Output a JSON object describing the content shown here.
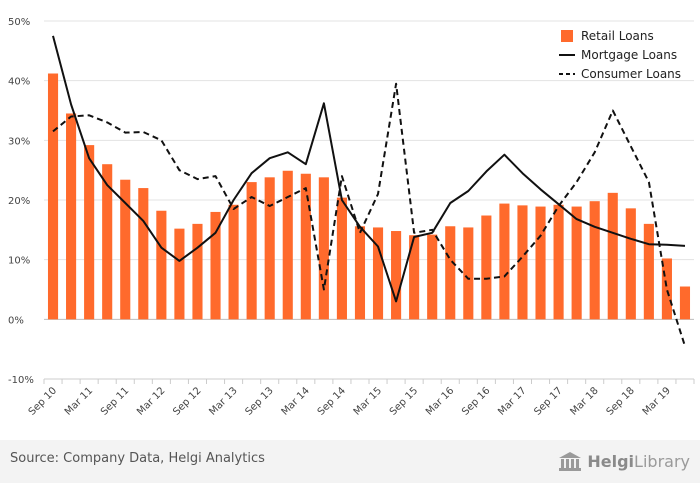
{
  "chart_data": {
    "type": "bar+line",
    "title": "",
    "xlabel": "",
    "ylabel": "",
    "ylim": [
      -10,
      50
    ],
    "yticks": [
      -10,
      0,
      10,
      20,
      30,
      40,
      50
    ],
    "ytick_labels": [
      "-10%",
      "0%",
      "10%",
      "20%",
      "30%",
      "40%",
      "50%"
    ],
    "grid": true,
    "legend_position": "top-right",
    "x_tick_labels": [
      "Sep 10",
      "Mar 11",
      "Sep 11",
      "Mar 12",
      "Sep 12",
      "Mar 13",
      "Sep 13",
      "Mar 14",
      "Sep 14",
      "Mar 15",
      "Sep 15",
      "Mar 16",
      "Sep 16",
      "Mar 17",
      "Sep 17",
      "Mar 18",
      "Sep 18",
      "Mar 19"
    ],
    "categories": [
      "Sep 10",
      "Dec 10",
      "Mar 11",
      "Jun 11",
      "Sep 11",
      "Dec 11",
      "Mar 12",
      "Jun 12",
      "Sep 12",
      "Dec 12",
      "Mar 13",
      "Jun 13",
      "Sep 13",
      "Dec 13",
      "Mar 14",
      "Jun 14",
      "Sep 14",
      "Dec 14",
      "Mar 15",
      "Jun 15",
      "Sep 15",
      "Dec 15",
      "Mar 16",
      "Jun 16",
      "Sep 16",
      "Dec 16",
      "Mar 17",
      "Jun 17",
      "Sep 17",
      "Dec 17",
      "Mar 18",
      "Jun 18",
      "Sep 18",
      "Dec 18",
      "Mar 19",
      "Jun 19"
    ],
    "series": [
      {
        "name": "Retail Loans",
        "kind": "bar",
        "color": "#ff6a2c",
        "values": [
          41.2,
          34.5,
          29.2,
          26.0,
          23.4,
          22.0,
          18.2,
          15.2,
          16.0,
          18.0,
          19.2,
          23.0,
          23.8,
          24.9,
          24.4,
          23.8,
          20.4,
          15.6,
          15.4,
          14.8,
          14.1,
          14.2,
          15.6,
          15.4,
          17.4,
          19.4,
          19.1,
          18.9,
          19.2,
          18.9,
          19.8,
          21.2,
          18.6,
          16.0,
          10.2,
          5.5
        ]
      },
      {
        "name": "Mortgage Loans",
        "kind": "line",
        "dash": "solid",
        "color": "#111111",
        "values": [
          47.5,
          36.0,
          27.0,
          22.5,
          19.5,
          16.5,
          12.0,
          9.8,
          12.0,
          14.5,
          20.0,
          24.5,
          27.0,
          28.0,
          26.0,
          36.2,
          20.0,
          15.5,
          12.2,
          3.0,
          13.8,
          14.5,
          19.5,
          21.5,
          24.8,
          27.6,
          24.5,
          21.8,
          19.3,
          16.8,
          15.5,
          14.5,
          13.5,
          12.6,
          12.5,
          12.3
        ]
      },
      {
        "name": "Consumer Loans",
        "kind": "line",
        "dash": "dashed",
        "color": "#111111",
        "values": [
          31.5,
          34.0,
          34.2,
          33.0,
          31.3,
          31.4,
          30.0,
          25.0,
          23.5,
          24.0,
          18.5,
          20.5,
          19.0,
          20.5,
          22.0,
          5.0,
          24.0,
          14.5,
          21.0,
          39.5,
          14.5,
          15.0,
          10.0,
          6.8,
          6.8,
          7.2,
          10.5,
          14.0,
          19.0,
          23.0,
          28.0,
          35.0,
          29.0,
          23.0,
          5.0,
          -4.5
        ]
      }
    ]
  },
  "footer": {
    "source": "Source: Company Data, Helgi Analytics",
    "brand_prefix": "Helgi",
    "brand_suffix": "Library",
    "brand_icon": "library-building-icon"
  }
}
